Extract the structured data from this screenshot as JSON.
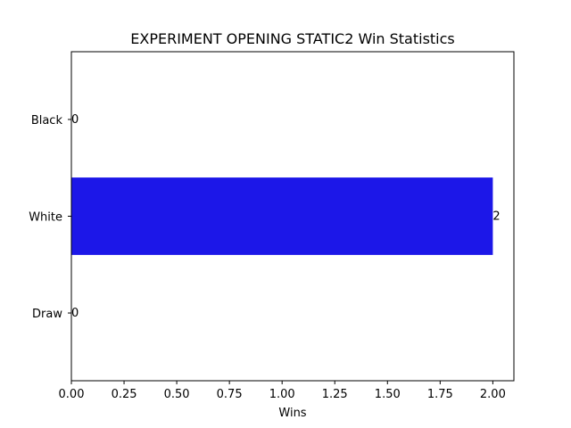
{
  "chart_data": {
    "type": "bar",
    "orientation": "horizontal",
    "title": "EXPERIMENT OPENING STATIC2 Win Statistics",
    "xlabel": "Wins",
    "ylabel": "",
    "categories": [
      "Black",
      "White",
      "Draw"
    ],
    "values": [
      0,
      2,
      0
    ],
    "data_labels": [
      "0",
      "2",
      "0"
    ],
    "xlim": [
      0,
      2.1
    ],
    "xticks": [
      0.0,
      0.25,
      0.5,
      0.75,
      1.0,
      1.25,
      1.5,
      1.75,
      2.0
    ],
    "xtick_labels": [
      "0.00",
      "0.25",
      "0.50",
      "0.75",
      "1.00",
      "1.25",
      "1.50",
      "1.75",
      "2.00"
    ],
    "bar_color": "#1c17e8",
    "grid": false,
    "legend": "none"
  }
}
